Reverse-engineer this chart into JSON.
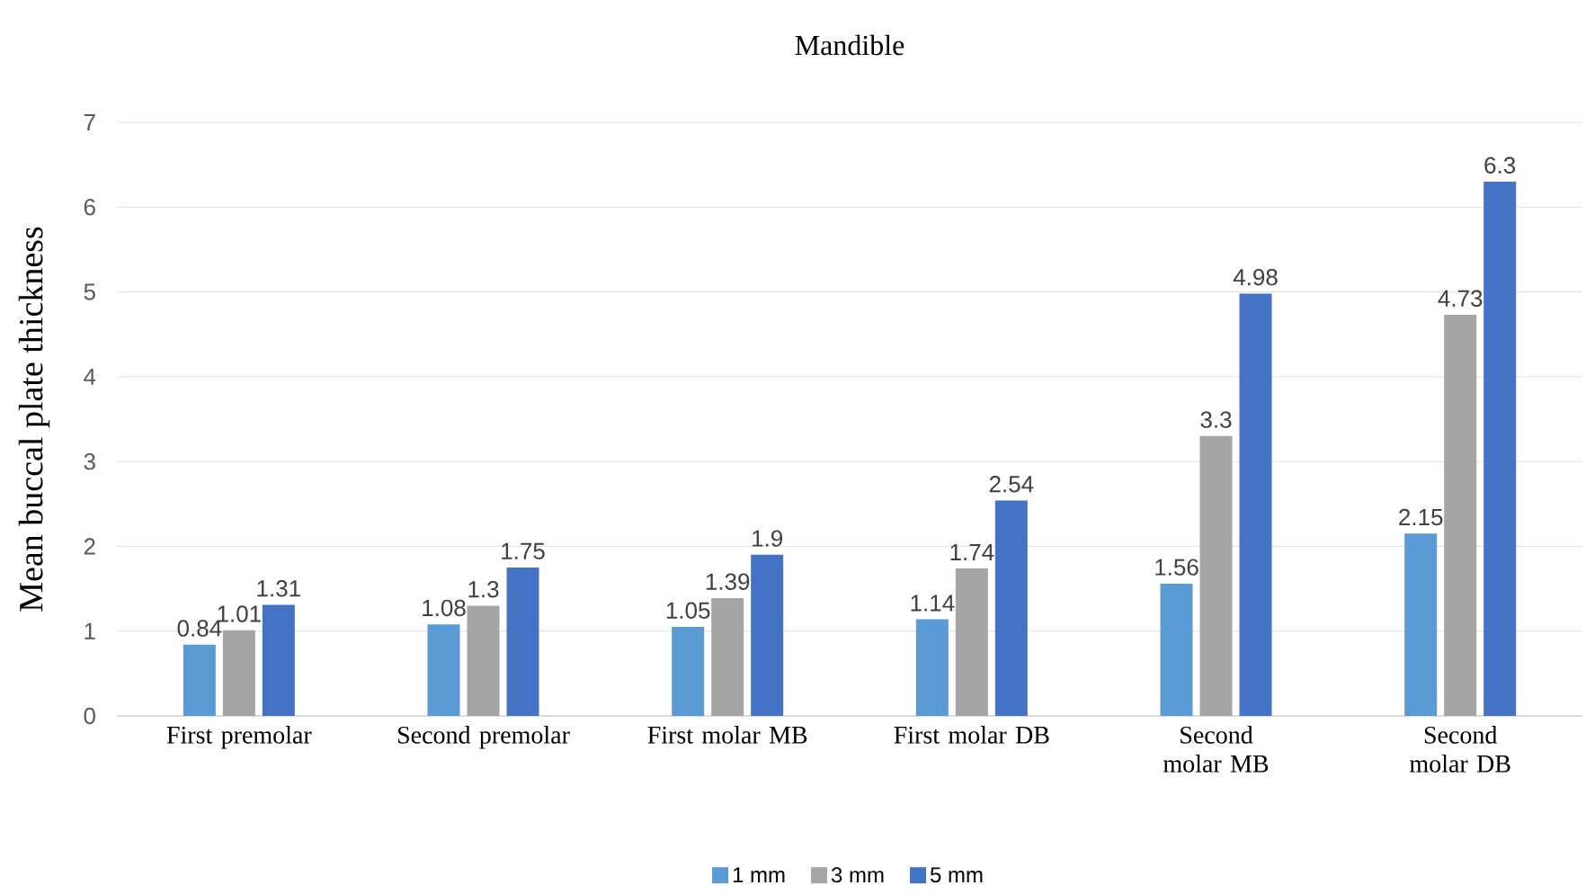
{
  "chart_data": {
    "type": "bar",
    "title": "Mandible",
    "ylabel": "Mean buccal plate thickness",
    "categories": [
      "First premolar",
      "Second premolar",
      "First molar MB",
      "First molar DB",
      "Second molar MB",
      "Second molar DB"
    ],
    "series": [
      {
        "name": "1 mm",
        "color": "#5b9bd5",
        "values": [
          0.84,
          1.08,
          1.05,
          1.14,
          1.56,
          2.15
        ]
      },
      {
        "name": "3 mm",
        "color": "#a5a5a5",
        "values": [
          1.01,
          1.3,
          1.39,
          1.74,
          3.3,
          4.73
        ]
      },
      {
        "name": "5 mm",
        "color": "#4472c4",
        "values": [
          1.31,
          1.75,
          1.9,
          2.54,
          4.98,
          6.3
        ]
      }
    ],
    "ylim": [
      0,
      7
    ],
    "yticks": [
      0,
      1,
      2,
      3,
      4,
      5,
      6,
      7
    ],
    "grid": "y",
    "legend": "bottom",
    "data_labels": true
  }
}
